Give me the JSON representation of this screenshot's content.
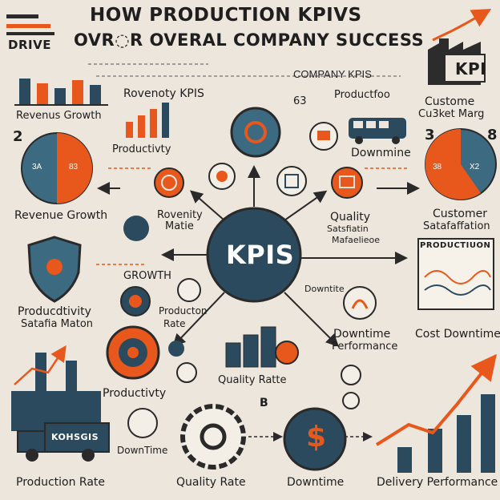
{
  "header": {
    "title_line1": "HOW  PRODUCTION KPIVS",
    "title_line2": "OVR◌R OVERAL COMPANY SUCCESS",
    "drive_caption": "DRIVE",
    "company_kpis": "COMPANY KPIS",
    "kpi_badge": "KPI"
  },
  "center": {
    "label": "KPIS"
  },
  "labels": {
    "revenue_growth_top": "Revenus Growth",
    "revenue_kpis": "Rovenoty KPIS",
    "productivity_top": "Productivty",
    "num_63": "63",
    "productfood": "Productfoo",
    "customer_market": "Custome",
    "customer_market2": "Cu3ket Marg",
    "num_2": "2",
    "num_3": "3",
    "num_8": "8",
    "downmine": "Downmine",
    "pie_left_a": "3A",
    "pie_left_b": "83",
    "pie_right_a": "38",
    "pie_right_b": "X2",
    "revenue_growth_mid": "Revenue Growth",
    "rovenity_matie1": "Rovenity",
    "rovenity_matie2": "Matie",
    "quality_ssm1": "Quality",
    "quality_ssm2": "Satsfiatin",
    "quality_ssm3": "Mafaelieoe",
    "customer_sat1": "Customer",
    "customer_sat2": "Satafaffation",
    "growth": "GROWTH",
    "production_box": "PRODUCTIUON",
    "downtite": "Downtite",
    "producdtivity1": "Producdtivity",
    "producdtivity2": "Satafia Maton",
    "producton_rate1": "Producton",
    "producton_rate2": "Rate",
    "downtime_perf1": "Downtime",
    "downtime_perf2": "Performance",
    "cost_downtime": "Cost Downtime",
    "productivity_bottom": "Productivty",
    "quality_ratte": "Quality Ratte",
    "num_b": "B",
    "truck_label": "KOHSGIS",
    "downtime_small": "DownTime",
    "production_rate": "Production Rate",
    "quality_rate": "Quality Rate",
    "downtime": "Downtime",
    "delivery_performance": "Delivery Performance"
  },
  "colors": {
    "background": "#ece6dc",
    "navy": "#2c4a5e",
    "teal": "#3c6a80",
    "orange": "#e8581c",
    "dark": "#2a2a2a"
  },
  "icons": [
    "kpi-factory-icon",
    "gear-icon",
    "money-icon",
    "truck-icon",
    "factory-icon",
    "shield-icon",
    "pie-chart-icon",
    "bar-chart-icon",
    "growth-arrow-icon",
    "bus-icon"
  ]
}
